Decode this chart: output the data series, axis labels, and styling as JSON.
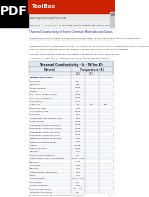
{
  "bg_color": "#ffffff",
  "pdf_icon_bg": "#000000",
  "red_bar_color": "#cc2200",
  "page_bg": "#ffffff",
  "table_header": "Thermal Conductivity - k - W/(m K)",
  "footer_url": "http://www.engineeringtoolbox.com/thermal-conductivity-d_429.html",
  "rows": [
    [
      "Metals and Alloys",
      "",
      "",
      ""
    ],
    [
      "Aluminum",
      "237",
      "",
      ""
    ],
    [
      "Beryllium",
      "218",
      "",
      ""
    ],
    [
      "Brass (gilding)",
      "0.143",
      "",
      ""
    ],
    [
      "Bronze",
      "0.1",
      "",
      ""
    ],
    [
      "TG - Alloy copper (pure)",
      "0.323",
      "",
      ""
    ],
    [
      "TG - Alloy (ASTM A)",
      "0.325",
      "",
      ""
    ],
    [
      "Iron (pure)",
      "73.0",
      "",
      ""
    ],
    [
      "Cast Iron",
      "52",
      "2.5",
      "200"
    ],
    [
      "Stainless Steel",
      "14.4",
      "",
      ""
    ],
    [
      "Aluminum oxide",
      "0.024",
      "",
      ""
    ],
    [
      "Antimony",
      "18.5",
      "",
      ""
    ],
    [
      "Argon (gas, not compressed)",
      "0.58",
      "",
      ""
    ],
    [
      "Argon (pure)",
      "0.169",
      "",
      ""
    ],
    [
      "Refrigerant mixtures (pure)",
      "0.138",
      "",
      ""
    ],
    [
      "Refrigerant mixtures (ASTM)",
      "0.105",
      "",
      ""
    ],
    [
      "Refrigerant mixtures (mix)",
      "0.037",
      "",
      ""
    ],
    [
      "Refrigerant mixtures (mix)",
      "0.033",
      "",
      ""
    ],
    [
      "Effective thermal properties",
      "0.13",
      "",
      ""
    ],
    [
      "Effective thermal (mix)",
      "0.33",
      "",
      ""
    ],
    [
      "Approx",
      "0.068",
      "",
      ""
    ],
    [
      "Dense cement",
      "0.243",
      "",
      ""
    ],
    [
      "Bitumen",
      "0.17",
      "",
      ""
    ],
    [
      "Construction mixtures",
      "0.5",
      "",
      ""
    ],
    [
      "Dense stone (1m in insulation)",
      "0.04 - 0.06",
      "",
      ""
    ],
    [
      "Bitumen",
      "17.56",
      "",
      ""
    ],
    [
      "Aluminum",
      "0.38",
      "",
      ""
    ],
    [
      "Bitumen",
      "0.33",
      "",
      ""
    ],
    [
      "Plate thermal properties",
      "1.03",
      "",
      ""
    ],
    [
      "Glass",
      "1.05",
      "",
      ""
    ],
    [
      "Silicone base",
      "0.11 - 0.52",
      "",
      ""
    ],
    [
      "Solid base",
      "1.5",
      "",
      ""
    ],
    [
      "Glass insulation",
      "0.33",
      "",
      ""
    ],
    [
      "Acoustic insulation",
      "0.5 - 1.5",
      "",
      ""
    ],
    [
      "Dielectric insulation",
      "1.8",
      "",
      ""
    ]
  ]
}
